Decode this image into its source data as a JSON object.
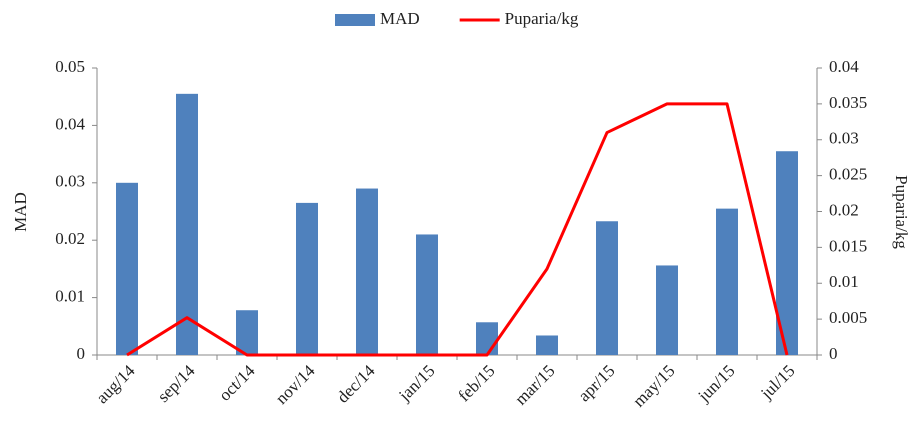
{
  "chart_data": {
    "type": "bar",
    "categories": [
      "aug/14",
      "sep/14",
      "oct/14",
      "nov/14",
      "dec/14",
      "jan/15",
      "feb/15",
      "mar/15",
      "apr/15",
      "may/15",
      "jun/15",
      "jul/15"
    ],
    "series": [
      {
        "name": "MAD",
        "type": "bar",
        "color": "#4f81bd",
        "values": [
          0.03,
          0.0455,
          0.0078,
          0.0265,
          0.029,
          0.021,
          0.0057,
          0.0034,
          0.0233,
          0.0156,
          0.0255,
          0.0355
        ]
      },
      {
        "name": "Puparia/kg",
        "type": "line",
        "axis": "y2",
        "color": "#ff0000",
        "values": [
          0,
          0.0052,
          0,
          0,
          0,
          0,
          0,
          0.012,
          0.031,
          0.035,
          0.035,
          0
        ]
      }
    ],
    "y_label": "MAD",
    "y2_label": "Puparia/kg",
    "ylim": [
      0,
      0.05
    ],
    "yticks": [
      0,
      0.01,
      0.02,
      0.03,
      0.04,
      0.05
    ],
    "y2lim": [
      0,
      0.04
    ],
    "y2ticks": [
      0,
      0.005,
      0.01,
      0.015,
      0.02,
      0.025,
      0.03,
      0.035,
      0.04
    ],
    "legend": "top",
    "grid": false
  }
}
